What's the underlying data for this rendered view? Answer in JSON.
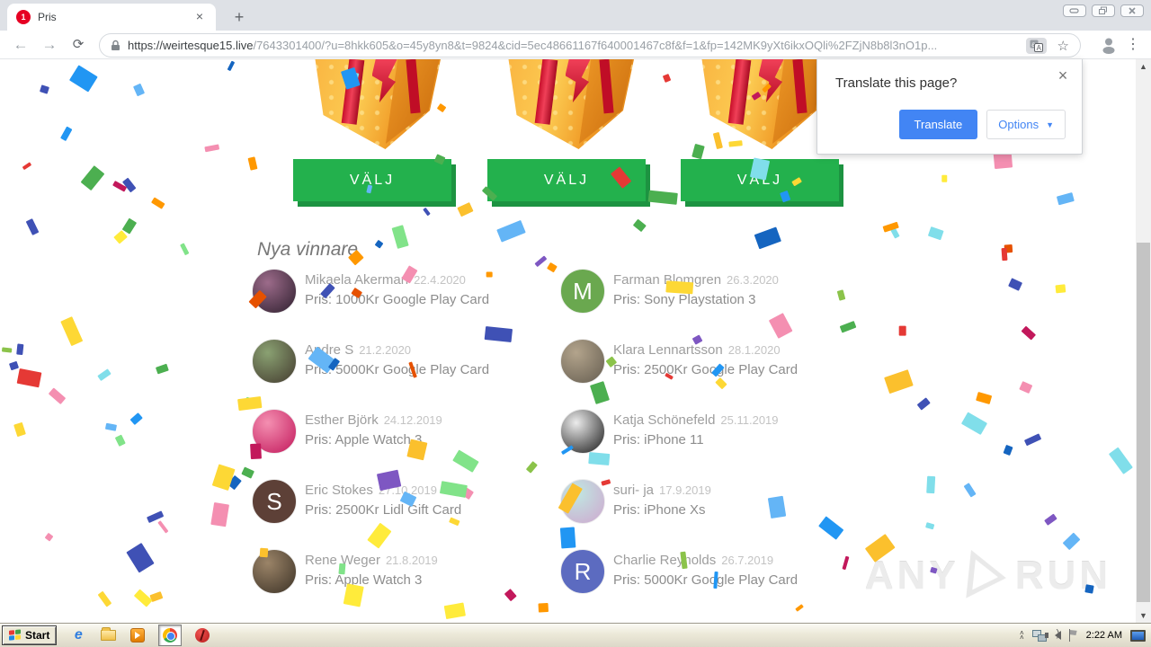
{
  "browser": {
    "tab": {
      "title": "Pris",
      "favicon_badge": "1",
      "close_glyph": "×"
    },
    "new_tab_glyph": "+",
    "back_glyph": "←",
    "forward_glyph": "→",
    "reload_glyph": "⟳",
    "url": {
      "scheme_host": "https://weirtesque15.live",
      "rest": "/7643301400/?u=8hkk605&o=45y8yn8&t=9824&cid=5ec48661167f640001467c8f&f=1&fp=142MK9yXt6ikxOQli%2FZjN8b8l3nO1p..."
    },
    "bookmark_star_glyph": "☆",
    "kebab_glyph": "⋮"
  },
  "translate_popup": {
    "title": "Translate this page?",
    "translate_button": "Translate",
    "options_button": "Options",
    "close_glyph": "×",
    "caret_glyph": "▼",
    "accent_color": "#4285f4"
  },
  "content": {
    "choose_button_label": "VÄLJ",
    "choose_button_color": "#23b14d",
    "winners_heading": "Nya vinnare",
    "winners_left": [
      {
        "name": "Mikaela Akerman",
        "date": "22.4.2020",
        "prize": "Pris: 1000Kr Google Play Card",
        "avatar": {
          "kind": "photo",
          "colors": [
            "#9c6b8a",
            "#2e1f2e"
          ],
          "letter": ""
        }
      },
      {
        "name": "Andre S",
        "date": "21.2.2020",
        "prize": "Pris: 5000Kr Google Play Card",
        "avatar": {
          "kind": "photo",
          "colors": [
            "#8aa172",
            "#433a2e"
          ],
          "letter": ""
        }
      },
      {
        "name": "Esther Björk",
        "date": "24.12.2019",
        "prize": "Pris: Apple Watch 3",
        "avatar": {
          "kind": "photo",
          "colors": [
            "#f48fb1",
            "#c2185b"
          ],
          "letter": ""
        }
      },
      {
        "name": "Eric Stokes",
        "date": "27.10.2019",
        "prize": "Pris: 2500Kr Lidl Gift Card",
        "avatar": {
          "kind": "initial",
          "colors": [
            "#5d4037",
            "#5d4037"
          ],
          "letter": "S"
        }
      },
      {
        "name": "Rene Weger",
        "date": "21.8.2019",
        "prize": "Pris: Apple Watch 3",
        "avatar": {
          "kind": "photo",
          "colors": [
            "#9b8468",
            "#3c3226"
          ],
          "letter": ""
        }
      }
    ],
    "winners_right": [
      {
        "name": "Farman Blomgren",
        "date": "26.3.2020",
        "prize": "Pris: Sony Playstation 3",
        "avatar": {
          "kind": "initial",
          "colors": [
            "#6aa84f",
            "#6aa84f"
          ],
          "letter": "M"
        }
      },
      {
        "name": "Klara Lennartsson",
        "date": "28.1.2020",
        "prize": "Pris: 2500Kr Google Play Card",
        "avatar": {
          "kind": "photo",
          "colors": [
            "#b3a48c",
            "#655d50"
          ],
          "letter": ""
        }
      },
      {
        "name": "Katja Schönefeld",
        "date": "25.11.2019",
        "prize": "Pris: iPhone 11",
        "avatar": {
          "kind": "photo",
          "colors": [
            "#ececec",
            "#181818"
          ],
          "letter": ""
        }
      },
      {
        "name": "suri- ja",
        "date": "17.9.2019",
        "prize": "Pris: iPhone Xs",
        "avatar": {
          "kind": "photo",
          "colors": [
            "#bfe8e2",
            "#cfa7cf"
          ],
          "letter": ""
        }
      },
      {
        "name": "Charlie Reynolds",
        "date": "26.7.2019",
        "prize": "Pris: 5000Kr Google Play Card",
        "avatar": {
          "kind": "initial",
          "colors": [
            "#5c6bc0",
            "#5c6bc0"
          ],
          "letter": "R"
        }
      }
    ],
    "confetti_palette": [
      "#fdd835",
      "#fbc02d",
      "#ff9800",
      "#e65100",
      "#e53935",
      "#c2185b",
      "#f48fb1",
      "#8bc34a",
      "#4caf50",
      "#81e389",
      "#2196f3",
      "#1565c0",
      "#64b5f6",
      "#80deea",
      "#7e57c2",
      "#3f51b5",
      "#ffeb3b"
    ]
  },
  "watermark": {
    "any": "ANY",
    "run": "RUN"
  },
  "taskbar": {
    "start_label": "Start",
    "clock": "2:22 AM"
  },
  "scrollbar": {
    "up_glyph": "▲",
    "down_glyph": "▼"
  }
}
